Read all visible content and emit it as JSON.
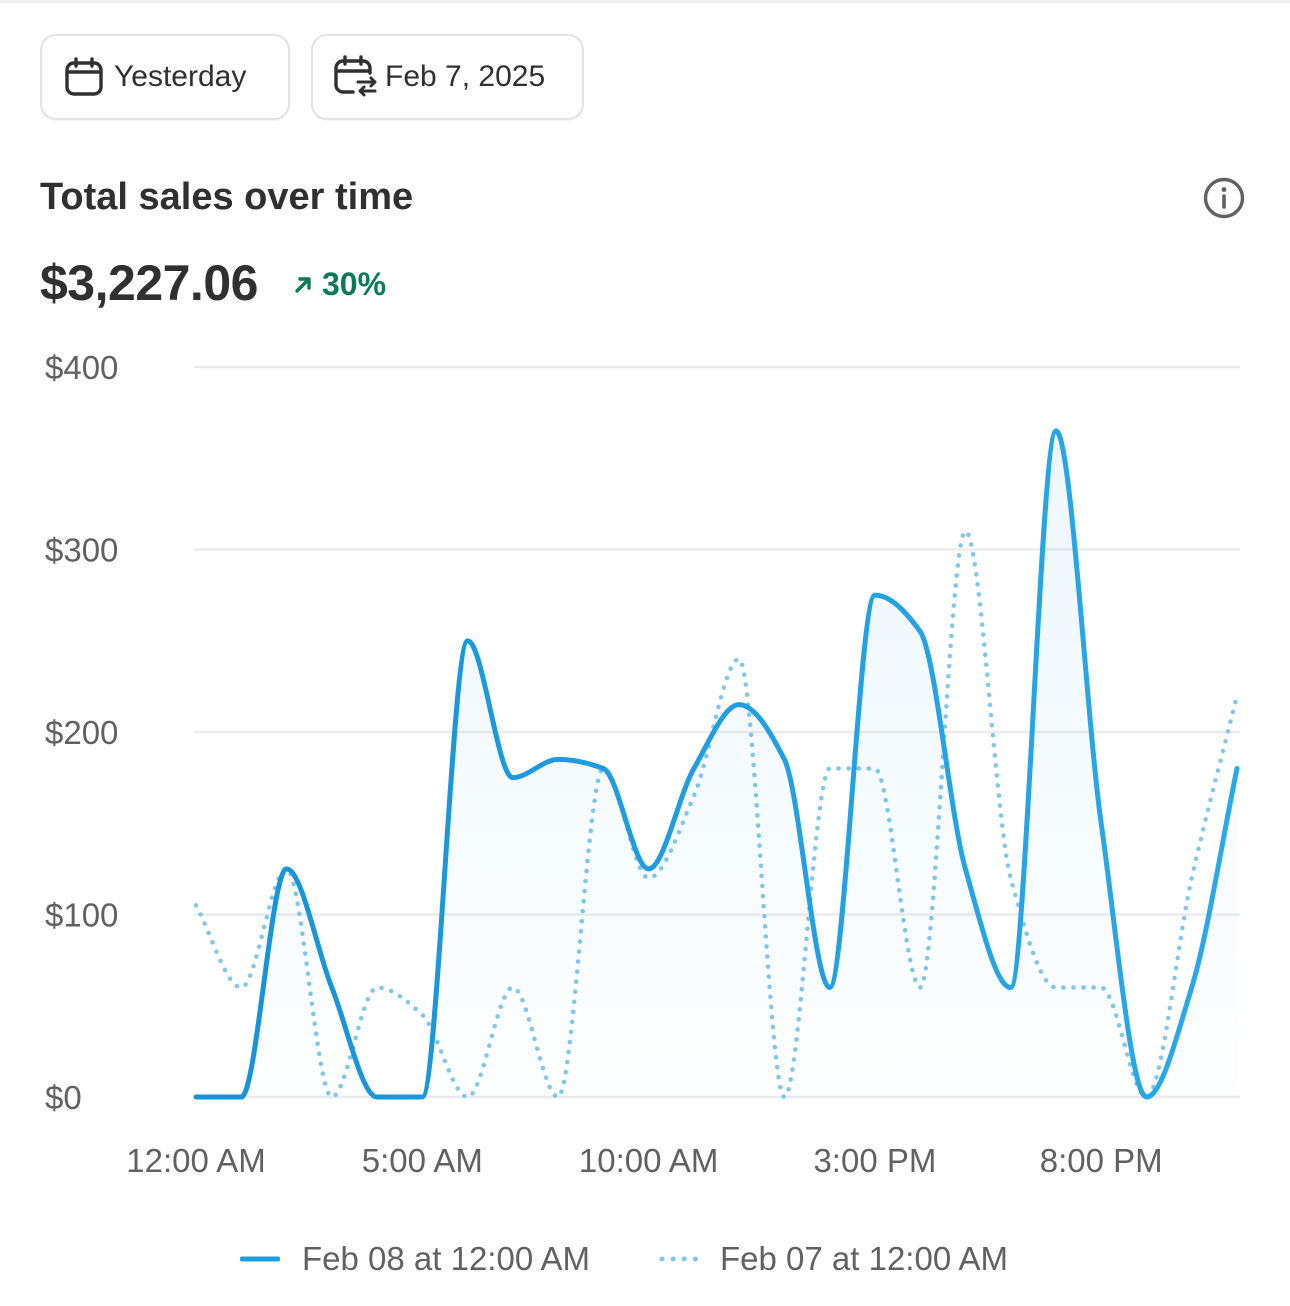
{
  "date_picker": {
    "label": "Yesterday",
    "icon": "calendar-icon"
  },
  "comparison_picker": {
    "label": "Feb 7, 2025",
    "icon": "calendar-compare-icon"
  },
  "card": {
    "title": "Total sales over time",
    "info_icon": "info-icon"
  },
  "summary": {
    "total": "$3,227.06",
    "change": "30%",
    "change_direction": "up",
    "change_color": "#0a7a5a"
  },
  "colors": {
    "current": "#1c9ee0",
    "previous": "#7fc7ec",
    "grid": "#ebebeb",
    "axis_text": "#616161"
  },
  "chart_data": {
    "type": "line",
    "title": "",
    "xlabel": "",
    "ylabel": "",
    "ylim": [
      0,
      400
    ],
    "y_ticks": [
      {
        "value": 0,
        "label": "$0"
      },
      {
        "value": 100,
        "label": "$100"
      },
      {
        "value": 200,
        "label": "$200"
      },
      {
        "value": 300,
        "label": "$300"
      },
      {
        "value": 400,
        "label": "$400"
      }
    ],
    "x_ticks": [
      {
        "hour": 0,
        "label": "12:00 AM"
      },
      {
        "hour": 5,
        "label": "5:00 AM"
      },
      {
        "hour": 10,
        "label": "10:00 AM"
      },
      {
        "hour": 15,
        "label": "3:00 PM"
      },
      {
        "hour": 20,
        "label": "8:00 PM"
      }
    ],
    "x": [
      0,
      1,
      2,
      3,
      4,
      5,
      6,
      7,
      8,
      9,
      10,
      11,
      12,
      13,
      14,
      15,
      16,
      17,
      18,
      19,
      20,
      21,
      22,
      23
    ],
    "grid": true,
    "legend_position": "bottom",
    "series": [
      {
        "name": "Feb 08 at 12:00 AM",
        "style": "solid",
        "fill": true,
        "values": [
          0,
          0,
          125,
          60,
          0,
          0,
          250,
          175,
          185,
          180,
          125,
          180,
          215,
          185,
          60,
          275,
          255,
          125,
          60,
          365,
          150,
          0,
          60,
          180
        ]
      },
      {
        "name": "Feb 07 at 12:00 AM",
        "style": "dotted",
        "fill": false,
        "values": [
          105,
          60,
          125,
          0,
          60,
          45,
          0,
          60,
          0,
          180,
          120,
          165,
          240,
          0,
          180,
          180,
          60,
          310,
          120,
          60,
          60,
          0,
          120,
          220
        ]
      }
    ]
  }
}
